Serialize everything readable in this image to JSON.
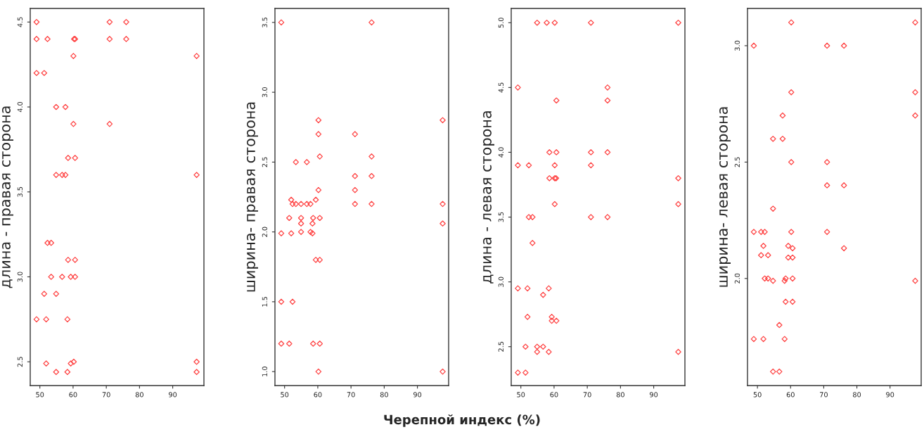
{
  "chart_data": [
    {
      "type": "scatter",
      "ylabel": "длина - правая сторона",
      "marker": "diamond",
      "grid": false,
      "xlim": [
        47.1,
        99.4
      ],
      "xticks": [
        50,
        60,
        70,
        80,
        90
      ],
      "ylim": [
        2.36,
        4.58
      ],
      "yticks": [
        2.5,
        {
          "value": 3,
          "label": "3.0"
        },
        3.5,
        {
          "value": 4,
          "label": "4.0"
        },
        4.5
      ],
      "series": [
        {
          "color": "#ff4040",
          "x": [
            49,
            71,
            76,
            49,
            52.3,
            60.3,
            60.6,
            71,
            76,
            60.1,
            97.2,
            49,
            51.3,
            54.9,
            57.7,
            60.1,
            71,
            58.5,
            60.6,
            54.9,
            56.7,
            57.7,
            97.2,
            52.3,
            53.4,
            58.5,
            60.6,
            53.4,
            56.7,
            59.3,
            60.6,
            51.3,
            54.9,
            49,
            51.9,
            58.3,
            51.9,
            59.3,
            60.2,
            97.2,
            54.9,
            58.3,
            97.2
          ],
          "values": [
            4.5,
            4.5,
            4.5,
            4.4,
            4.4,
            4.4,
            4.4,
            4.4,
            4.4,
            4.3,
            4.3,
            4.2,
            4.2,
            4.0,
            4.0,
            3.9,
            3.9,
            3.7,
            3.7,
            3.6,
            3.6,
            3.6,
            3.6,
            3.2,
            3.2,
            3.1,
            3.1,
            3.0,
            3.0,
            3.0,
            3.0,
            2.9,
            2.9,
            2.75,
            2.75,
            2.75,
            2.49,
            2.49,
            2.5,
            2.5,
            2.44,
            2.44,
            2.44
          ]
        }
      ]
    },
    {
      "type": "scatter",
      "ylabel": "ширина- правая сторона",
      "xlabel": "Черепной индекс (%)",
      "marker": "diamond",
      "grid": false,
      "xlim": [
        47.1,
        99.4
      ],
      "xticks": [
        50,
        60,
        70,
        80,
        90
      ],
      "ylim": [
        0.9,
        3.6
      ],
      "yticks": [
        {
          "value": 1,
          "label": "1.0"
        },
        1.5,
        {
          "value": 2,
          "label": "2.0"
        },
        2.5,
        {
          "value": 3,
          "label": "3.0"
        },
        3.5
      ],
      "series": [
        {
          "color": "#ff4040",
          "x": [
            49,
            76.2,
            60.2,
            97.6,
            60.2,
            71.2,
            60.6,
            76.2,
            53.4,
            56.7,
            71.2,
            76.2,
            60.2,
            71.2,
            52,
            59.4,
            52.4,
            53.4,
            54.96,
            56.7,
            57.8,
            71.2,
            76.2,
            97.6,
            51.4,
            54.96,
            58.6,
            60.6,
            54.96,
            58.4,
            97.6,
            49,
            52,
            58.4,
            54.96,
            57.8,
            59.4,
            60.6,
            49,
            52.4,
            49,
            51.4,
            58.6,
            60.6,
            60.2,
            97.6
          ],
          "values": [
            3.5,
            3.5,
            2.8,
            2.8,
            2.7,
            2.7,
            2.54,
            2.54,
            2.5,
            2.5,
            2.4,
            2.4,
            2.3,
            2.3,
            2.23,
            2.23,
            2.2,
            2.2,
            2.2,
            2.2,
            2.2,
            2.2,
            2.2,
            2.2,
            2.1,
            2.1,
            2.1,
            2.1,
            2.06,
            2.06,
            2.06,
            1.99,
            1.99,
            1.99,
            2.0,
            2.0,
            1.8,
            1.8,
            1.5,
            1.5,
            1.2,
            1.2,
            1.2,
            1.2,
            1.0,
            1.0
          ]
        }
      ]
    },
    {
      "type": "scatter",
      "ylabel": "длина - левая сторона",
      "marker": "diamond",
      "grid": false,
      "xlim": [
        47.1,
        99.4
      ],
      "xticks": [
        50,
        60,
        70,
        80,
        90
      ],
      "ylim": [
        2.2,
        5.11
      ],
      "yticks": [
        2.5,
        {
          "value": 3,
          "label": "3.0"
        },
        3.5,
        {
          "value": 4,
          "label": "4.0"
        },
        4.5,
        {
          "value": 5,
          "label": "5.0"
        }
      ],
      "series": [
        {
          "color": "#ff4040",
          "x": [
            54.9,
            57.8,
            60.2,
            71.1,
            97.4,
            49.1,
            76.1,
            60.7,
            76.1,
            58.6,
            60.7,
            71.1,
            76.1,
            49.1,
            52.4,
            60.2,
            71.1,
            58.6,
            60.2,
            60.6,
            97.4,
            60.2,
            97.4,
            52.4,
            53.5,
            71.1,
            76.1,
            53.5,
            49.1,
            52.0,
            58.4,
            56.7,
            52.0,
            59.3,
            59.3,
            60.7,
            51.4,
            54.9,
            56.7,
            54.9,
            58.4,
            97.4,
            49.1,
            51.4
          ],
          "values": [
            5,
            5,
            5,
            5,
            5,
            4.5,
            4.5,
            4.4,
            4.4,
            4.0,
            4.0,
            4.0,
            4.0,
            3.9,
            3.9,
            3.9,
            3.9,
            3.8,
            3.8,
            3.8,
            3.8,
            3.6,
            3.6,
            3.5,
            3.5,
            3.5,
            3.5,
            3.3,
            2.95,
            2.95,
            2.95,
            2.9,
            2.73,
            2.73,
            2.7,
            2.7,
            2.5,
            2.5,
            2.5,
            2.46,
            2.46,
            2.46,
            2.3,
            2.3
          ]
        }
      ]
    },
    {
      "type": "scatter",
      "ylabel": "ширина- левая сторона",
      "marker": "diamond",
      "grid": false,
      "xlim": [
        47.0,
        99.4
      ],
      "xticks": [
        50,
        60,
        70,
        80,
        90
      ],
      "ylim": [
        1.54,
        3.16
      ],
      "yticks": [
        {
          "value": 2,
          "label": "2.0"
        },
        2.5,
        {
          "value": 3,
          "label": "3.0"
        }
      ],
      "series": [
        {
          "color": "#ff4040",
          "x": [
            60.2,
            97.6,
            48.9,
            71.0,
            76.1,
            60.2,
            97.6,
            57.6,
            97.6,
            54.7,
            57.6,
            60.2,
            71.0,
            71.0,
            76.1,
            54.7,
            48.9,
            51.1,
            52.2,
            60.2,
            71.0,
            51.8,
            59.3,
            60.6,
            76.1,
            51.1,
            53.2,
            59.3,
            60.6,
            52.2,
            53.2,
            58.5,
            60.6,
            54.7,
            58.2,
            97.6,
            58.5,
            60.6,
            56.6,
            48.9,
            51.8,
            58.2,
            54.7,
            56.6
          ],
          "values": [
            3.1,
            3.1,
            3.0,
            3.0,
            3.0,
            2.8,
            2.8,
            2.7,
            2.7,
            2.6,
            2.6,
            2.5,
            2.5,
            2.4,
            2.4,
            2.3,
            2.2,
            2.2,
            2.2,
            2.2,
            2.2,
            2.14,
            2.14,
            2.13,
            2.13,
            2.1,
            2.1,
            2.09,
            2.09,
            2.0,
            2.0,
            2.0,
            2.0,
            1.99,
            1.99,
            1.99,
            1.9,
            1.9,
            1.8,
            1.74,
            1.74,
            1.74,
            1.6,
            1.6
          ]
        }
      ]
    }
  ]
}
